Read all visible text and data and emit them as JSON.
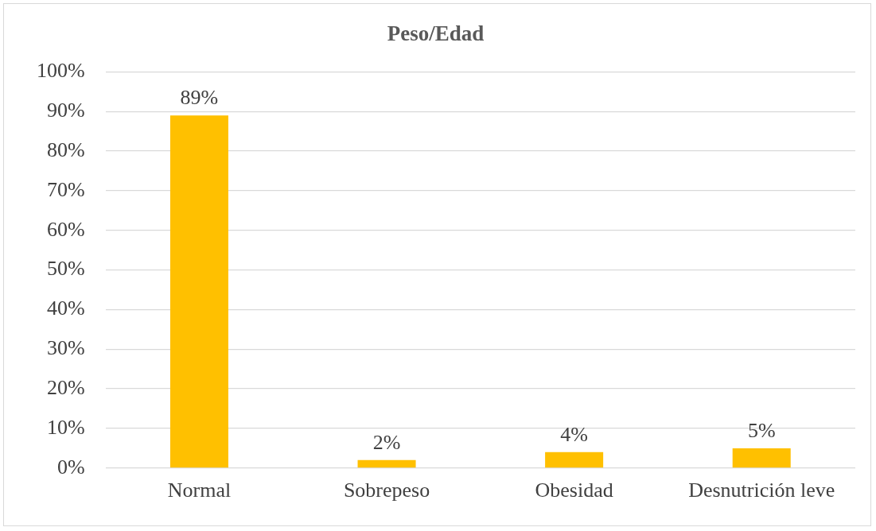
{
  "chart_data": {
    "type": "bar",
    "title": "Peso/Edad",
    "categories": [
      "Normal",
      "Sobrepeso",
      "Obesidad",
      "Desnutrición leve"
    ],
    "values": [
      89,
      2,
      4,
      5
    ],
    "color": "#ffc000",
    "value_labels": [
      "89%",
      "2%",
      "4%",
      "5%"
    ],
    "ylim": [
      0,
      100
    ],
    "yticks": [
      {
        "value": 0,
        "label": "0%"
      },
      {
        "value": 10,
        "label": "10%"
      },
      {
        "value": 20,
        "label": "20%"
      },
      {
        "value": 30,
        "label": "30%"
      },
      {
        "value": 40,
        "label": "40%"
      },
      {
        "value": 50,
        "label": "50%"
      },
      {
        "value": 60,
        "label": "60%"
      },
      {
        "value": 70,
        "label": "70%"
      },
      {
        "value": 80,
        "label": "80%"
      },
      {
        "value": 90,
        "label": "90%"
      },
      {
        "value": 100,
        "label": "100%"
      }
    ],
    "grid": "y",
    "legend": false
  }
}
